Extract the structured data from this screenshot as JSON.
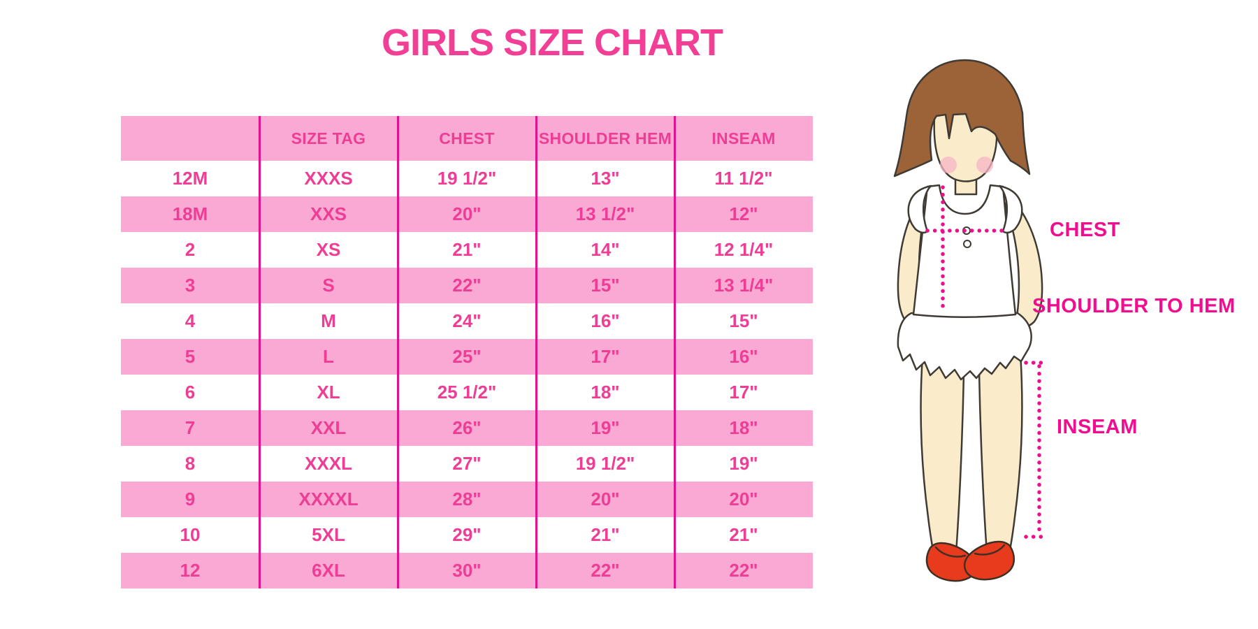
{
  "chart_data": {
    "type": "table",
    "title": "GIRLS SIZE CHART",
    "columns": [
      "",
      "SIZE TAG",
      "CHEST",
      "SHOULDER HEM",
      "INSEAM"
    ],
    "rows": [
      [
        "12M",
        "XXXS",
        "19 1/2\"",
        "13\"",
        "11 1/2\""
      ],
      [
        "18M",
        "XXS",
        "20\"",
        "13 1/2\"",
        "12\""
      ],
      [
        "2",
        "XS",
        "21\"",
        "14\"",
        "12 1/4\""
      ],
      [
        "3",
        "S",
        "22\"",
        "15\"",
        "13 1/4\""
      ],
      [
        "4",
        "M",
        "24\"",
        "16\"",
        "15\""
      ],
      [
        "5",
        "L",
        "25\"",
        "17\"",
        "16\""
      ],
      [
        "6",
        "XL",
        "25 1/2\"",
        "18\"",
        "17\""
      ],
      [
        "7",
        "XXL",
        "26\"",
        "19\"",
        "18\""
      ],
      [
        "8",
        "XXXL",
        "27\"",
        "19 1/2\"",
        "19\""
      ],
      [
        "9",
        "XXXXL",
        "28\"",
        "20\"",
        "20\""
      ],
      [
        "10",
        "5XL",
        "29\"",
        "21\"",
        "21\""
      ],
      [
        "12",
        "6XL",
        "30\"",
        "22\"",
        "22\""
      ]
    ],
    "layout": {
      "row_striping": "header pink, then data rows alternate white/pink starting white",
      "grid": "vertical column separators only, no horizontal lines"
    }
  },
  "figure": {
    "labels": {
      "chest": "CHEST",
      "shoulder_to_hem": "SHOULDER TO HEM",
      "inseam": "INSEAM"
    },
    "description": "illustrated girl with brown bob hair, white ruffled dress, red shoes; dotted magenta measurement guide lines"
  },
  "colors": {
    "title_pink": "#f33e95",
    "row_pink": "#f9a9d3",
    "cell_text_pink": "#ee3d95",
    "column_separator": "#e2108c",
    "measure_magenta": "#f20d90",
    "hair_brown": "#9c6339",
    "skin": "#faeccb",
    "shoe_red": "#e83b1e"
  }
}
